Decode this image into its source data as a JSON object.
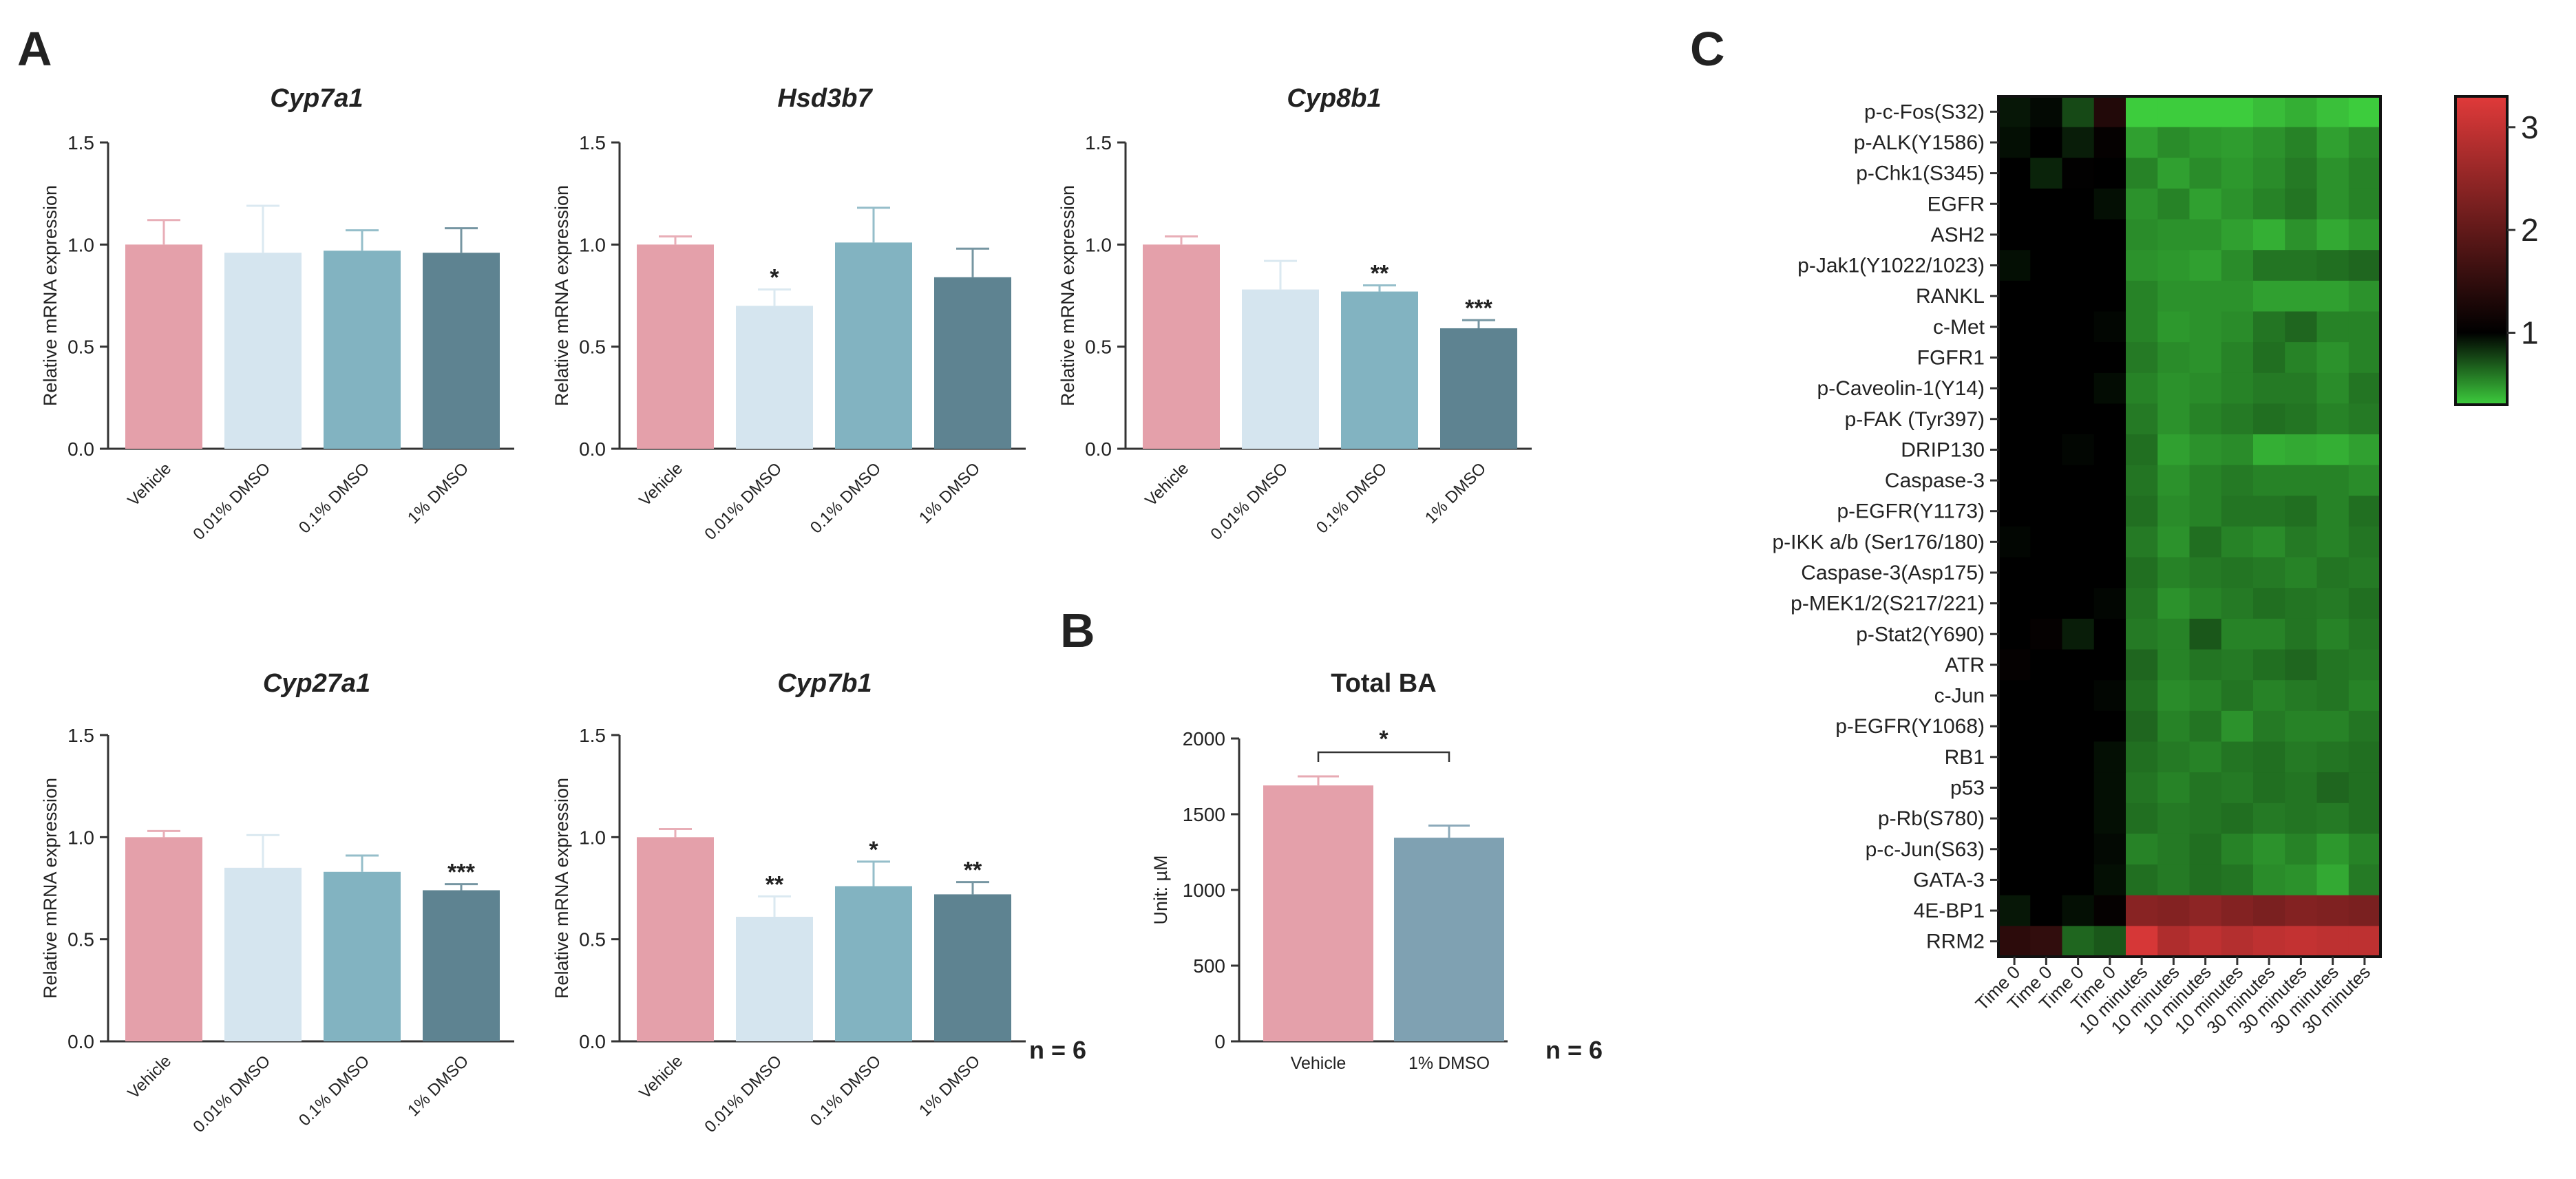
{
  "panels": {
    "a": "A",
    "b": "B",
    "c": "C"
  },
  "gene_ylabel": "Relative mRNA expression",
  "gene_groups": [
    "Vehicle",
    "0.01% DMSO",
    "0.1% DMSO",
    "1% DMSO"
  ],
  "n_label_a": "n = 6",
  "n_label_b": "n = 6",
  "colors": {
    "vehicle": "#e4a0aa",
    "dmso001": "#d5e5ef",
    "dmso01": "#82b3c1",
    "dmso1": "#5e8391",
    "total_1pct": "#7fa1b2"
  },
  "chart_data": [
    {
      "type": "bar",
      "title": "Cyp7a1",
      "ylabel": "Relative mRNA expression",
      "categories": [
        "Vehicle",
        "0.01% DMSO",
        "0.1% DMSO",
        "1% DMSO"
      ],
      "values": [
        1.0,
        0.96,
        0.97,
        0.96
      ],
      "errors": [
        0.12,
        0.23,
        0.1,
        0.12
      ],
      "significance": [
        "",
        "",
        "",
        ""
      ],
      "ylim": [
        0,
        1.5
      ],
      "yticks": [
        "0.0",
        "0.5",
        "1.0",
        "1.5"
      ]
    },
    {
      "type": "bar",
      "title": "Hsd3b7",
      "ylabel": "Relative mRNA expression",
      "categories": [
        "Vehicle",
        "0.01% DMSO",
        "0.1% DMSO",
        "1% DMSO"
      ],
      "values": [
        1.0,
        0.7,
        1.01,
        0.84
      ],
      "errors": [
        0.04,
        0.08,
        0.17,
        0.14
      ],
      "significance": [
        "",
        "*",
        "",
        ""
      ],
      "ylim": [
        0,
        1.5
      ],
      "yticks": [
        "0.0",
        "0.5",
        "1.0",
        "1.5"
      ]
    },
    {
      "type": "bar",
      "title": "Cyp8b1",
      "ylabel": "Relative mRNA expression",
      "categories": [
        "Vehicle",
        "0.01% DMSO",
        "0.1% DMSO",
        "1% DMSO"
      ],
      "values": [
        1.0,
        0.78,
        0.77,
        0.59
      ],
      "errors": [
        0.04,
        0.14,
        0.03,
        0.04
      ],
      "significance": [
        "",
        "",
        "**",
        "***"
      ],
      "ylim": [
        0,
        1.5
      ],
      "yticks": [
        "0.0",
        "0.5",
        "1.0",
        "1.5"
      ]
    },
    {
      "type": "bar",
      "title": "Cyp27a1",
      "ylabel": "Relative mRNA expression",
      "categories": [
        "Vehicle",
        "0.01% DMSO",
        "0.1% DMSO",
        "1% DMSO"
      ],
      "values": [
        1.0,
        0.85,
        0.83,
        0.74
      ],
      "errors": [
        0.03,
        0.16,
        0.08,
        0.03
      ],
      "significance": [
        "",
        "",
        "",
        "***"
      ],
      "ylim": [
        0,
        1.5
      ],
      "yticks": [
        "0.0",
        "0.5",
        "1.0",
        "1.5"
      ]
    },
    {
      "type": "bar",
      "title": "Cyp7b1",
      "ylabel": "Relative mRNA expression",
      "categories": [
        "Vehicle",
        "0.01% DMSO",
        "0.1% DMSO",
        "1% DMSO"
      ],
      "values": [
        1.0,
        0.61,
        0.76,
        0.72
      ],
      "errors": [
        0.04,
        0.1,
        0.12,
        0.06
      ],
      "significance": [
        "",
        "**",
        "*",
        "**"
      ],
      "ylim": [
        0,
        1.5
      ],
      "yticks": [
        "0.0",
        "0.5",
        "1.0",
        "1.5"
      ]
    },
    {
      "type": "bar",
      "title": "Total BA",
      "ylabel": "Unit: µM",
      "categories": [
        "Vehicle",
        "1% DMSO"
      ],
      "values": [
        1690,
        1345
      ],
      "errors": [
        60,
        80
      ],
      "significance_bracket": "*",
      "ylim": [
        0,
        2000
      ],
      "yticks": [
        "0",
        "500",
        "1000",
        "1500",
        "2000"
      ]
    },
    {
      "type": "heatmap",
      "rows": [
        "p-c-Fos(S32)",
        "p-ALK(Y1586)",
        "p-Chk1(S345)",
        "EGFR",
        "ASH2",
        "p-Jak1(Y1022/1023)",
        "RANKL",
        "c-Met",
        "FGFR1",
        "p-Caveolin-1(Y14)",
        "p-FAK (Tyr397)",
        "DRIP130",
        "Caspase-3",
        "p-EGFR(Y1173)",
        "p-IKK a/b (Ser176/180)",
        "Caspase-3(Asp175)",
        "p-MEK1/2(S217/221)",
        "p-Stat2(Y690)",
        "ATR",
        "c-Jun",
        "p-EGFR(Y1068)",
        "RB1",
        "p53",
        "p-Rb(S780)",
        "p-c-Jun(S63)",
        "GATA-3",
        "4E-BP1",
        "RRM2"
      ],
      "columns": [
        "Time 0",
        "Time 0",
        "Time 0",
        "Time 0",
        "10 minutes",
        "10 minutes",
        "10 minutes",
        "10 minutes",
        "30 minutes",
        "30 minutes",
        "30 minutes",
        "30 minutes"
      ],
      "color_scale": {
        "ticks": [
          "1",
          "2",
          "3"
        ],
        "low": "#3dcc3d",
        "mid": "#000000",
        "high": "#e03a3a",
        "min": 0.3,
        "max": 3.3
      },
      "values": [
        [
          0.92,
          0.97,
          0.75,
          1.35,
          0.3,
          0.28,
          0.28,
          0.3,
          0.35,
          0.4,
          0.34,
          0.3
        ],
        [
          0.95,
          1.0,
          0.9,
          1.05,
          0.45,
          0.52,
          0.48,
          0.46,
          0.5,
          0.55,
          0.45,
          0.52
        ],
        [
          1.0,
          0.88,
          1.02,
          1.0,
          0.55,
          0.45,
          0.52,
          0.48,
          0.52,
          0.58,
          0.5,
          0.55
        ],
        [
          1.0,
          1.0,
          1.0,
          0.95,
          0.5,
          0.55,
          0.45,
          0.5,
          0.55,
          0.6,
          0.5,
          0.55
        ],
        [
          1.0,
          1.0,
          1.0,
          1.0,
          0.52,
          0.5,
          0.5,
          0.45,
          0.4,
          0.5,
          0.42,
          0.48
        ],
        [
          0.95,
          1.0,
          1.0,
          1.0,
          0.5,
          0.48,
          0.45,
          0.52,
          0.6,
          0.6,
          0.62,
          0.65
        ],
        [
          1.0,
          1.0,
          1.0,
          1.0,
          0.55,
          0.5,
          0.5,
          0.5,
          0.45,
          0.45,
          0.45,
          0.5
        ],
        [
          1.0,
          1.0,
          1.0,
          0.98,
          0.55,
          0.48,
          0.5,
          0.52,
          0.6,
          0.65,
          0.55,
          0.55
        ],
        [
          1.0,
          1.0,
          1.0,
          1.0,
          0.58,
          0.52,
          0.5,
          0.55,
          0.62,
          0.55,
          0.5,
          0.55
        ],
        [
          1.0,
          1.0,
          1.0,
          0.96,
          0.55,
          0.5,
          0.52,
          0.55,
          0.58,
          0.58,
          0.52,
          0.6
        ],
        [
          1.0,
          1.0,
          1.0,
          1.0,
          0.58,
          0.5,
          0.55,
          0.58,
          0.62,
          0.6,
          0.55,
          0.58
        ],
        [
          1.0,
          1.0,
          0.98,
          1.0,
          0.62,
          0.45,
          0.5,
          0.52,
          0.4,
          0.42,
          0.4,
          0.45
        ],
        [
          1.0,
          1.0,
          1.0,
          1.0,
          0.6,
          0.5,
          0.55,
          0.58,
          0.55,
          0.55,
          0.55,
          0.52
        ],
        [
          1.0,
          1.0,
          1.0,
          1.0,
          0.62,
          0.52,
          0.55,
          0.6,
          0.6,
          0.62,
          0.55,
          0.62
        ],
        [
          0.98,
          1.0,
          1.0,
          1.0,
          0.58,
          0.5,
          0.62,
          0.55,
          0.52,
          0.58,
          0.55,
          0.6
        ],
        [
          1.0,
          1.0,
          1.0,
          1.0,
          0.62,
          0.55,
          0.58,
          0.6,
          0.58,
          0.55,
          0.6,
          0.58
        ],
        [
          1.0,
          1.0,
          1.0,
          0.98,
          0.6,
          0.5,
          0.55,
          0.58,
          0.62,
          0.6,
          0.58,
          0.62
        ],
        [
          1.0,
          1.05,
          0.9,
          1.0,
          0.58,
          0.55,
          0.7,
          0.55,
          0.55,
          0.6,
          0.55,
          0.6
        ],
        [
          1.05,
          1.0,
          1.0,
          1.0,
          0.65,
          0.55,
          0.6,
          0.58,
          0.62,
          0.65,
          0.6,
          0.58
        ],
        [
          1.0,
          1.0,
          1.0,
          0.98,
          0.62,
          0.52,
          0.55,
          0.6,
          0.55,
          0.58,
          0.6,
          0.55
        ],
        [
          1.0,
          1.0,
          1.0,
          1.0,
          0.65,
          0.55,
          0.6,
          0.5,
          0.58,
          0.55,
          0.55,
          0.6
        ],
        [
          1.0,
          1.0,
          1.0,
          0.95,
          0.62,
          0.58,
          0.55,
          0.6,
          0.62,
          0.58,
          0.6,
          0.62
        ],
        [
          1.0,
          1.0,
          1.0,
          0.95,
          0.6,
          0.55,
          0.6,
          0.58,
          0.62,
          0.6,
          0.65,
          0.62
        ],
        [
          1.0,
          1.0,
          1.0,
          0.95,
          0.62,
          0.58,
          0.6,
          0.62,
          0.58,
          0.6,
          0.58,
          0.62
        ],
        [
          1.0,
          1.0,
          1.0,
          0.97,
          0.55,
          0.58,
          0.62,
          0.55,
          0.5,
          0.55,
          0.48,
          0.55
        ],
        [
          1.0,
          1.0,
          1.0,
          0.95,
          0.62,
          0.58,
          0.62,
          0.6,
          0.52,
          0.5,
          0.42,
          0.58
        ],
        [
          0.92,
          1.0,
          0.95,
          1.05,
          2.4,
          2.35,
          2.45,
          2.35,
          2.25,
          2.35,
          2.3,
          2.25
        ],
        [
          1.45,
          1.5,
          0.65,
          0.7,
          3.2,
          2.8,
          2.95,
          2.85,
          2.95,
          3.0,
          2.95,
          2.95
        ]
      ]
    }
  ]
}
